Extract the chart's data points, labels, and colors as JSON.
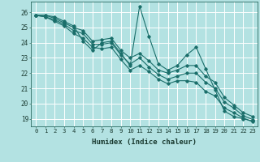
{
  "xlabel": "Humidex (Indice chaleur)",
  "bg_color": "#b3e2e2",
  "grid_color": "#ffffff",
  "line_color": "#1a6e6a",
  "xlim": [
    -0.5,
    23.5
  ],
  "ylim": [
    18.5,
    26.7
  ],
  "yticks": [
    19,
    20,
    21,
    22,
    23,
    24,
    25,
    26
  ],
  "xticks": [
    0,
    1,
    2,
    3,
    4,
    5,
    6,
    7,
    8,
    9,
    10,
    11,
    12,
    13,
    14,
    15,
    16,
    17,
    18,
    19,
    20,
    21,
    22,
    23
  ],
  "series": [
    [
      25.8,
      25.8,
      25.7,
      25.4,
      25.1,
      24.1,
      23.5,
      24.0,
      24.1,
      23.3,
      22.5,
      26.4,
      24.4,
      22.6,
      22.2,
      22.5,
      23.2,
      23.7,
      22.3,
      20.9,
      19.5,
      19.15,
      19.0,
      18.85
    ],
    [
      25.8,
      25.8,
      25.6,
      25.3,
      25.0,
      24.8,
      24.1,
      24.2,
      24.3,
      23.5,
      23.0,
      23.3,
      22.8,
      22.2,
      22.0,
      22.2,
      22.5,
      22.5,
      21.8,
      21.4,
      20.4,
      19.9,
      19.4,
      19.15
    ],
    [
      25.8,
      25.7,
      25.5,
      25.2,
      24.8,
      24.6,
      23.9,
      23.9,
      24.0,
      23.2,
      22.6,
      23.0,
      22.4,
      21.9,
      21.6,
      21.8,
      22.0,
      22.0,
      21.4,
      21.0,
      20.1,
      19.7,
      19.2,
      18.95
    ],
    [
      25.8,
      25.7,
      25.4,
      25.1,
      24.6,
      24.3,
      23.7,
      23.6,
      23.7,
      22.9,
      22.2,
      22.5,
      22.1,
      21.6,
      21.3,
      21.5,
      21.5,
      21.4,
      20.8,
      20.5,
      19.7,
      19.4,
      19.05,
      18.8
    ]
  ]
}
